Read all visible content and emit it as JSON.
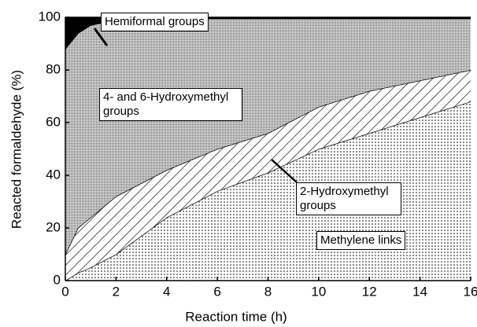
{
  "chart_data": {
    "type": "stacked-area",
    "x_label": "Reaction time (h)",
    "y_label": "Reacted formaldehyde (%)",
    "x": [
      0,
      0.5,
      1,
      2,
      4,
      6,
      8,
      10,
      12,
      14,
      16
    ],
    "series": [
      {
        "name": "Methylene links",
        "color": "#000000",
        "pattern": "dots",
        "values": [
          0,
          3,
          5,
          10,
          24,
          34,
          41,
          50,
          56,
          62,
          68
        ]
      },
      {
        "name": "2-Hydroxymethyl groups",
        "color": "#000000",
        "pattern": "hatch",
        "values": [
          10,
          17,
          19,
          22,
          18,
          16,
          15,
          16,
          16,
          14,
          12
        ]
      },
      {
        "name": "4- and 6-Hydroxymethyl groups",
        "color": "#000000",
        "pattern": "dense-dots",
        "values": [
          78,
          74,
          73,
          67,
          57.5,
          49.5,
          43.5,
          33.5,
          27.5,
          23.5,
          19.5
        ]
      },
      {
        "name": "Hemiformal groups",
        "color": "#000000",
        "pattern": "solid",
        "values": [
          12,
          6,
          3,
          1,
          0.5,
          0.5,
          0.5,
          0.5,
          0.5,
          0.5,
          0.5
        ]
      }
    ],
    "xlim": [
      0,
      16
    ],
    "xticks": [
      0,
      2,
      4,
      6,
      8,
      10,
      12,
      14,
      16
    ],
    "ylim": [
      0,
      100
    ],
    "yticks": [
      0,
      20,
      40,
      60,
      80,
      100
    ],
    "grid": false
  }
}
